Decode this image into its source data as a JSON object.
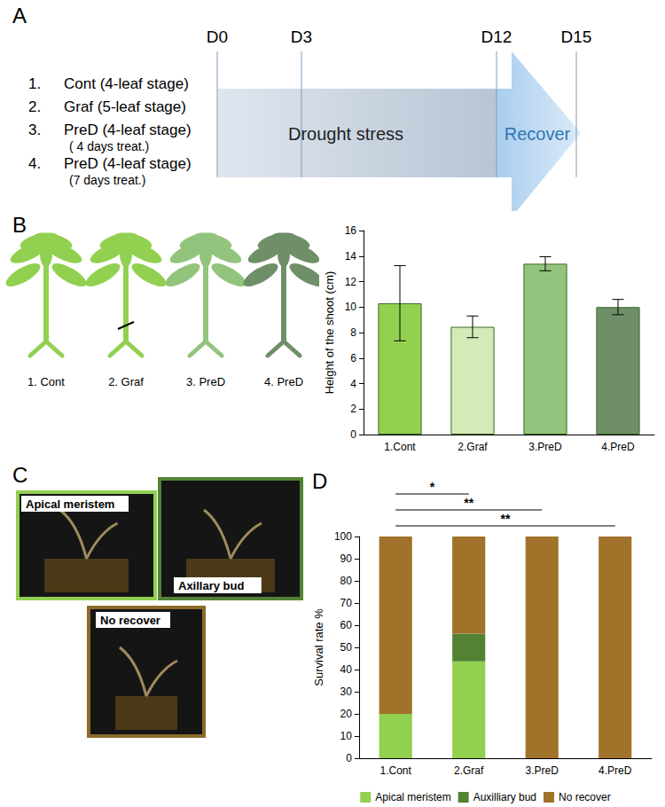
{
  "timeline": {
    "label": "A",
    "days": [
      "D0",
      "D3",
      "D12",
      "D15"
    ],
    "groups": [
      {
        "num": "1.",
        "text": "Cont  (4-leaf stage)"
      },
      {
        "num": "2.",
        "text": "Graf  (5-leaf stage)"
      },
      {
        "num": "3.",
        "text": "PreD (4-leaf stage)",
        "note": "( 4 days treat.)"
      },
      {
        "num": "4.",
        "text": "PreD (4-leaf stage)",
        "note": "(7 days treat.)"
      }
    ],
    "drought": "Drought stress",
    "recover": "Recover"
  },
  "plants": {
    "label": "B",
    "names": [
      "1. Cont",
      "2. Graf",
      "3. PreD",
      "4. PreD"
    ]
  },
  "photos": {
    "label": "C",
    "items": [
      {
        "text": "Apical meristem",
        "color": "#92d050"
      },
      {
        "text": "Axillary bud",
        "color": "#548235"
      },
      {
        "text": "No recover",
        "color": "#8b6a2a"
      }
    ]
  },
  "chart_data": [
    {
      "type": "bar",
      "categories": [
        "1.Cont",
        "2.Graf",
        "3.PreD",
        "4.PreD"
      ],
      "values": [
        10.3,
        8.45,
        13.4,
        10.0
      ],
      "errors": [
        2.95,
        0.85,
        0.55,
        0.6
      ],
      "colors": [
        "#92d050",
        "#d4eab8",
        "#93c47d",
        "#6f8f68"
      ],
      "ylabel": "Height of the shoot (cm)",
      "ylim": [
        0,
        16
      ],
      "yticks": [
        0,
        2,
        4,
        6,
        8,
        10,
        12,
        14,
        16
      ],
      "grid": false
    },
    {
      "type": "bar",
      "title": "D",
      "stacked": true,
      "categories": [
        "1.Cont",
        "2.Graf",
        "3.PreD",
        "4.PreD"
      ],
      "series": [
        {
          "name": "Apical meristem",
          "color": "#92d050",
          "values": [
            20,
            43.75,
            0,
            0
          ]
        },
        {
          "name": "Auxilliary bud",
          "color": "#548235",
          "values": [
            0,
            12.5,
            0,
            0
          ]
        },
        {
          "name": "No recover",
          "color": "#a0722a",
          "values": [
            80,
            43.75,
            100,
            100
          ]
        }
      ],
      "ylabel": "Survival rate %",
      "ylim": [
        0,
        100
      ],
      "yticks": [
        0,
        10,
        20,
        30,
        40,
        50,
        60,
        70,
        80,
        90,
        100
      ],
      "legend": "bottom",
      "grid": false,
      "annotations": [
        {
          "from": "1.Cont",
          "to": "2.Graf",
          "label": "*"
        },
        {
          "from": "1.Cont",
          "to": "3.PreD",
          "label": "**"
        },
        {
          "from": "1.Cont",
          "to": "4.PreD",
          "label": "**"
        }
      ]
    }
  ]
}
